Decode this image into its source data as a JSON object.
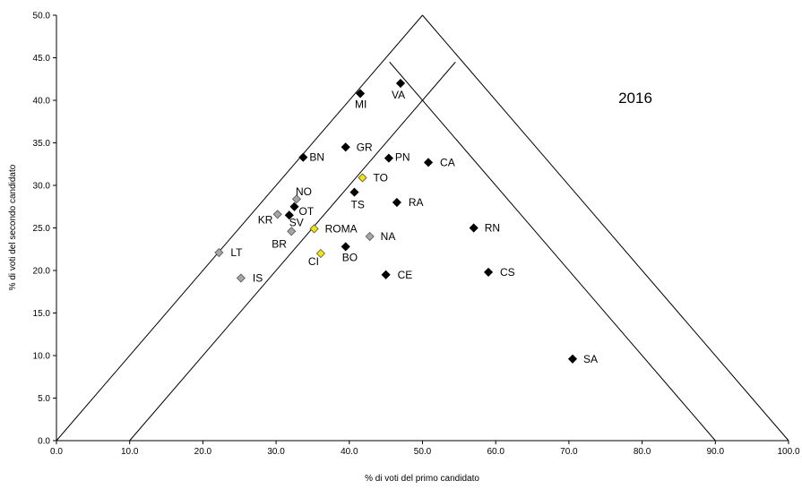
{
  "chart_data": {
    "type": "scatter",
    "annotation": "2016",
    "xlabel": "% di voti del primo candidato",
    "ylabel": "% di voti del secondo candidato",
    "xlim": [
      0,
      100
    ],
    "ylim": [
      0,
      50
    ],
    "x_ticks": [
      "0.0",
      "10.0",
      "20.0",
      "30.0",
      "40.0",
      "50.0",
      "60.0",
      "70.0",
      "80.0",
      "90.0",
      "100.0"
    ],
    "y_ticks": [
      "0.0",
      "5.0",
      "10.0",
      "15.0",
      "20.0",
      "25.0",
      "30.0",
      "35.0",
      "40.0",
      "45.0",
      "50.0"
    ],
    "grid": false,
    "reference_lines": [
      {
        "x": [
          0,
          50
        ],
        "y": [
          0,
          50
        ]
      },
      {
        "x": [
          50,
          100
        ],
        "y": [
          50,
          0
        ]
      },
      {
        "x": [
          10,
          54.5
        ],
        "y": [
          0,
          44.5
        ]
      },
      {
        "x": [
          45.5,
          90
        ],
        "y": [
          44.5,
          0
        ]
      }
    ],
    "colors": {
      "black": "#000000",
      "gray": "#a6a6a6",
      "yellow": "#f2e600"
    },
    "points": [
      {
        "label": "MI",
        "x": 41.5,
        "y": 40.8,
        "color": "black"
      },
      {
        "label": "VA",
        "x": 47.0,
        "y": 42.0,
        "color": "black"
      },
      {
        "label": "BN",
        "x": 33.7,
        "y": 33.3,
        "color": "black"
      },
      {
        "label": "GR",
        "x": 39.5,
        "y": 34.5,
        "color": "black"
      },
      {
        "label": "PN",
        "x": 45.4,
        "y": 33.2,
        "color": "black"
      },
      {
        "label": "CA",
        "x": 50.8,
        "y": 32.7,
        "color": "black"
      },
      {
        "label": "TO",
        "x": 41.8,
        "y": 30.9,
        "color": "yellow"
      },
      {
        "label": "NO",
        "x": 32.8,
        "y": 28.4,
        "color": "gray"
      },
      {
        "label": "TS",
        "x": 40.7,
        "y": 29.2,
        "color": "black"
      },
      {
        "label": "RA",
        "x": 46.5,
        "y": 28.0,
        "color": "black"
      },
      {
        "label": "OT",
        "x": 32.5,
        "y": 27.5,
        "color": "black"
      },
      {
        "label": "SV",
        "x": 31.8,
        "y": 26.5,
        "color": "black"
      },
      {
        "label": "KR",
        "x": 30.2,
        "y": 26.6,
        "color": "gray"
      },
      {
        "label": "ROMA",
        "x": 35.2,
        "y": 24.9,
        "color": "yellow"
      },
      {
        "label": "RN",
        "x": 57.0,
        "y": 25.0,
        "color": "black"
      },
      {
        "label": "BR",
        "x": 32.1,
        "y": 24.6,
        "color": "gray"
      },
      {
        "label": "NA",
        "x": 42.8,
        "y": 24.0,
        "color": "gray"
      },
      {
        "label": "BO",
        "x": 39.5,
        "y": 22.8,
        "color": "black"
      },
      {
        "label": "LT",
        "x": 22.2,
        "y": 22.1,
        "color": "gray"
      },
      {
        "label": "CI",
        "x": 36.1,
        "y": 22.0,
        "color": "yellow"
      },
      {
        "label": "CS",
        "x": 59.0,
        "y": 19.8,
        "color": "black"
      },
      {
        "label": "CE",
        "x": 45.0,
        "y": 19.5,
        "color": "black"
      },
      {
        "label": "IS",
        "x": 25.2,
        "y": 19.1,
        "color": "gray"
      },
      {
        "label": "SA",
        "x": 70.5,
        "y": 9.6,
        "color": "black"
      }
    ]
  }
}
